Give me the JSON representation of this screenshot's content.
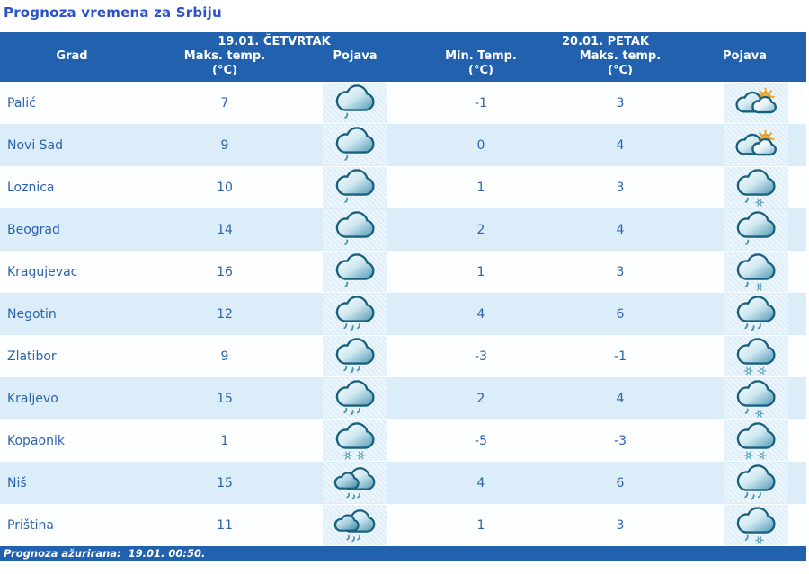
{
  "page_title": "Prognoza vremena za Srbiju",
  "table": {
    "day1_header": "19.01. ČETVRTAK",
    "day2_header": "20.01. PETAK",
    "columns": {
      "city": "Grad",
      "max_temp": "Maks. temp.",
      "min_temp": "Min. Temp.",
      "unit": "(°C)",
      "pojava": "Pojava"
    },
    "rows": [
      {
        "city": "Palić",
        "max1": "7",
        "icon1": "cloud-drizzle",
        "min2": "-1",
        "max2": "3",
        "icon2": "sun-clouds"
      },
      {
        "city": "Novi Sad",
        "max1": "9",
        "icon1": "cloud-drizzle",
        "min2": "0",
        "max2": "4",
        "icon2": "sun-clouds"
      },
      {
        "city": "Loznica",
        "max1": "10",
        "icon1": "cloud-drizzle",
        "min2": "1",
        "max2": "3",
        "icon2": "cloud-sleet"
      },
      {
        "city": "Beograd",
        "max1": "14",
        "icon1": "cloud-drizzle",
        "min2": "2",
        "max2": "4",
        "icon2": "cloud-drizzle"
      },
      {
        "city": "Kragujevac",
        "max1": "16",
        "icon1": "cloud-drizzle",
        "min2": "1",
        "max2": "3",
        "icon2": "cloud-sleet"
      },
      {
        "city": "Negotin",
        "max1": "12",
        "icon1": "cloud-rain",
        "min2": "4",
        "max2": "6",
        "icon2": "cloud-rain"
      },
      {
        "city": "Zlatibor",
        "max1": "9",
        "icon1": "cloud-rain",
        "min2": "-3",
        "max2": "-1",
        "icon2": "cloud-snow"
      },
      {
        "city": "Kraljevo",
        "max1": "15",
        "icon1": "cloud-rain",
        "min2": "2",
        "max2": "4",
        "icon2": "cloud-sleet"
      },
      {
        "city": "Kopaonik",
        "max1": "1",
        "icon1": "cloud-snow",
        "min2": "-5",
        "max2": "-3",
        "icon2": "cloud-snow"
      },
      {
        "city": "Niš",
        "max1": "15",
        "icon1": "clouds-showers",
        "min2": "4",
        "max2": "6",
        "icon2": "cloud-rain"
      },
      {
        "city": "Priština",
        "max1": "11",
        "icon1": "clouds-showers",
        "min2": "1",
        "max2": "3",
        "icon2": "cloud-sleet"
      }
    ]
  },
  "footer": {
    "text": "Prognoza ažurirana:  19.01. 00:50."
  },
  "colors": {
    "header_bg": "#2161ae",
    "row_alt_bg": "#dbedf8",
    "row_bg": "#fdfeff",
    "title_color": "#2b52c6",
    "cell_text_color": "#2d63ad",
    "cloud_stroke": "#19607f",
    "sun_color": "#f5a51d"
  }
}
